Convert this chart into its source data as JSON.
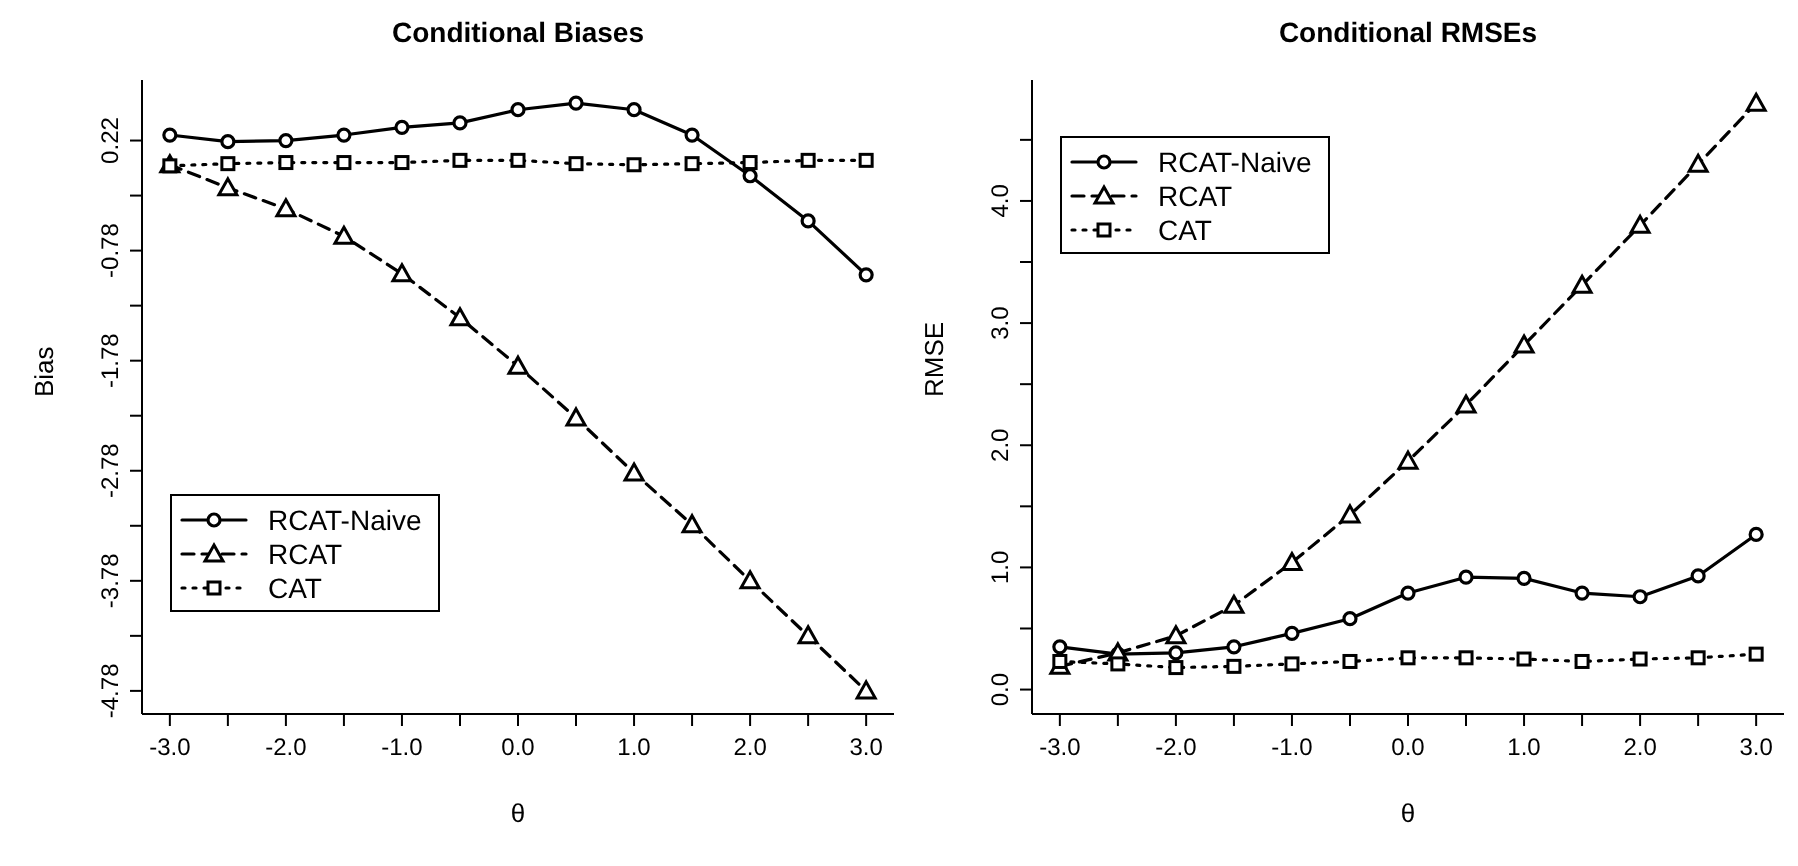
{
  "chart_data": [
    {
      "type": "line",
      "title": "Conditional Biases",
      "xlabel": "θ",
      "ylabel": "Bias",
      "x": [
        -3,
        -2.5,
        -2,
        -1.5,
        -1,
        -0.5,
        0,
        0.5,
        1,
        1.5,
        2,
        2.5,
        3
      ],
      "series": [
        {
          "name": "RCAT-Naive",
          "color": "#000000",
          "marker": "circle",
          "line_style": "solid",
          "values": [
            0.27,
            0.21,
            0.22,
            0.27,
            0.34,
            0.38,
            0.5,
            0.56,
            0.5,
            0.27,
            -0.1,
            -0.51,
            -1.0
          ]
        },
        {
          "name": "RCAT",
          "color": "#000000",
          "marker": "triangle",
          "line_style": "dashed",
          "values": [
            0.0,
            -0.21,
            -0.4,
            -0.65,
            -0.99,
            -1.39,
            -1.83,
            -2.3,
            -2.8,
            -3.27,
            -3.78,
            -4.28,
            -4.78
          ]
        },
        {
          "name": "CAT",
          "color": "#000000",
          "marker": "square",
          "line_style": "dotted",
          "values": [
            -0.01,
            0.01,
            0.02,
            0.02,
            0.02,
            0.04,
            0.04,
            0.01,
            0.0,
            0.01,
            0.02,
            0.04,
            0.04
          ]
        }
      ],
      "xlim": [
        -3.24,
        3.24
      ],
      "xticks": [
        {
          "value": -3,
          "label": "-3.0"
        },
        {
          "value": -2.5,
          "label": null
        },
        {
          "value": -2,
          "label": "-2.0"
        },
        {
          "value": -1.5,
          "label": null
        },
        {
          "value": -1,
          "label": "-1.0"
        },
        {
          "value": -0.5,
          "label": null
        },
        {
          "value": 0,
          "label": "0.0"
        },
        {
          "value": 0.5,
          "label": null
        },
        {
          "value": 1,
          "label": "1.0"
        },
        {
          "value": 1.5,
          "label": null
        },
        {
          "value": 2,
          "label": "2.0"
        },
        {
          "value": 2.5,
          "label": null
        },
        {
          "value": 3,
          "label": "3.0"
        }
      ],
      "ylim": [
        -4.99,
        0.77
      ],
      "yticks": [
        {
          "value": -4.78,
          "label": "-4.78"
        },
        {
          "value": -4.28,
          "label": null
        },
        {
          "value": -3.78,
          "label": "-3.78"
        },
        {
          "value": -3.28,
          "label": null
        },
        {
          "value": -2.78,
          "label": "-2.78"
        },
        {
          "value": -2.28,
          "label": null
        },
        {
          "value": -1.78,
          "label": "-1.78"
        },
        {
          "value": -1.28,
          "label": null
        },
        {
          "value": -0.78,
          "label": "-0.78"
        },
        {
          "value": -0.28,
          "label": null
        },
        {
          "value": 0.22,
          "label": "0.22"
        }
      ],
      "legend": "bottom left",
      "grid": false
    },
    {
      "type": "line",
      "title": "Conditional RMSEs",
      "xlabel": "θ",
      "ylabel": "RMSE",
      "x": [
        -3,
        -2.5,
        -2,
        -1.5,
        -1,
        -0.5,
        0,
        0.5,
        1,
        1.5,
        2,
        2.5,
        3
      ],
      "series": [
        {
          "name": "RCAT-Naive",
          "color": "#000000",
          "marker": "circle",
          "line_style": "solid",
          "values": [
            0.35,
            0.29,
            0.3,
            0.35,
            0.46,
            0.58,
            0.79,
            0.92,
            0.91,
            0.79,
            0.76,
            0.93,
            1.27
          ]
        },
        {
          "name": "RCAT",
          "color": "#000000",
          "marker": "triangle",
          "line_style": "dashed",
          "values": [
            0.19,
            0.3,
            0.44,
            0.69,
            1.04,
            1.43,
            1.87,
            2.33,
            2.82,
            3.31,
            3.8,
            4.3,
            4.8
          ]
        },
        {
          "name": "CAT",
          "color": "#000000",
          "marker": "square",
          "line_style": "dotted",
          "values": [
            0.23,
            0.21,
            0.18,
            0.19,
            0.21,
            0.23,
            0.26,
            0.26,
            0.25,
            0.23,
            0.25,
            0.26,
            0.29
          ]
        }
      ],
      "xlim": [
        -3.24,
        3.24
      ],
      "xticks": [
        {
          "value": -3,
          "label": "-3.0"
        },
        {
          "value": -2.5,
          "label": null
        },
        {
          "value": -2,
          "label": "-2.0"
        },
        {
          "value": -1.5,
          "label": null
        },
        {
          "value": -1,
          "label": "-1.0"
        },
        {
          "value": -0.5,
          "label": null
        },
        {
          "value": 0,
          "label": "0.0"
        },
        {
          "value": 0.5,
          "label": null
        },
        {
          "value": 1,
          "label": "1.0"
        },
        {
          "value": 1.5,
          "label": null
        },
        {
          "value": 2,
          "label": "2.0"
        },
        {
          "value": 2.5,
          "label": null
        },
        {
          "value": 3,
          "label": "3.0"
        }
      ],
      "ylim": [
        -0.2,
        4.99
      ],
      "yticks": [
        {
          "value": 0,
          "label": "0.0"
        },
        {
          "value": 0.5,
          "label": null
        },
        {
          "value": 1,
          "label": "1.0"
        },
        {
          "value": 1.5,
          "label": null
        },
        {
          "value": 2,
          "label": "2.0"
        },
        {
          "value": 2.5,
          "label": null
        },
        {
          "value": 3,
          "label": "3.0"
        },
        {
          "value": 3.5,
          "label": null
        },
        {
          "value": 4,
          "label": "4.0"
        },
        {
          "value": 4.5,
          "label": null
        }
      ],
      "legend": "top left",
      "grid": false
    }
  ]
}
